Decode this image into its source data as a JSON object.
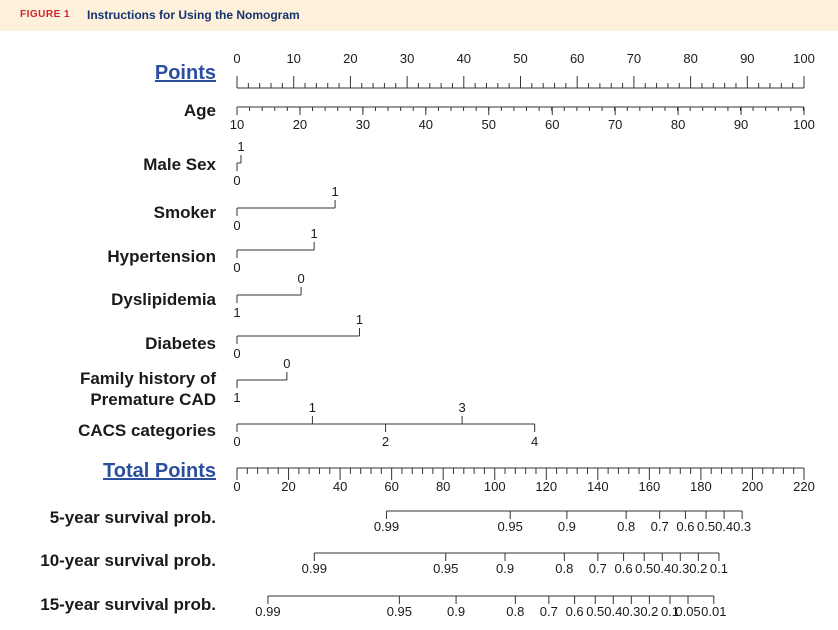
{
  "figure": {
    "label": "FIGURE 1",
    "title": "Instructions for Using the Nomogram"
  },
  "chart_data": {
    "type": "nomogram",
    "points_axis": {
      "label": "Points",
      "range": [
        0,
        100
      ],
      "major_ticks": [
        0,
        10,
        20,
        30,
        40,
        50,
        60,
        70,
        80,
        90,
        100
      ],
      "minor_step": 2
    },
    "predictors": [
      {
        "name": "Age",
        "labels": [
          {
            "text": "10",
            "points": 0,
            "side": "below"
          },
          {
            "text": "20",
            "points": 11.1,
            "side": "below"
          },
          {
            "text": "30",
            "points": 22.2,
            "side": "below"
          },
          {
            "text": "40",
            "points": 33.3,
            "side": "below"
          },
          {
            "text": "50",
            "points": 44.4,
            "side": "below"
          },
          {
            "text": "60",
            "points": 55.6,
            "side": "below"
          },
          {
            "text": "70",
            "points": 66.7,
            "side": "below"
          },
          {
            "text": "80",
            "points": 77.8,
            "side": "below"
          },
          {
            "text": "90",
            "points": 88.9,
            "side": "below"
          },
          {
            "text": "100",
            "points": 100,
            "side": "below"
          }
        ],
        "minor_step_points": 2.22
      },
      {
        "name": "Male Sex",
        "labels": [
          {
            "text": "0",
            "points": 0,
            "side": "below"
          },
          {
            "text": "1",
            "points": 0.7,
            "side": "above"
          }
        ]
      },
      {
        "name": "Smoker",
        "labels": [
          {
            "text": "0",
            "points": 0,
            "side": "below"
          },
          {
            "text": "1",
            "points": 17.3,
            "side": "above"
          }
        ]
      },
      {
        "name": "Hypertension",
        "labels": [
          {
            "text": "0",
            "points": 0,
            "side": "below"
          },
          {
            "text": "1",
            "points": 13.6,
            "side": "above"
          }
        ]
      },
      {
        "name": "Dyslipidemia",
        "labels": [
          {
            "text": "1",
            "points": 0,
            "side": "below"
          },
          {
            "text": "0",
            "points": 11.3,
            "side": "above"
          }
        ]
      },
      {
        "name": "Diabetes",
        "labels": [
          {
            "text": "0",
            "points": 0,
            "side": "below"
          },
          {
            "text": "1",
            "points": 21.6,
            "side": "above"
          }
        ]
      },
      {
        "name": "Family history of Premature CAD",
        "name_lines": [
          "Family history of",
          "Premature CAD"
        ],
        "labels": [
          {
            "text": "1",
            "points": 0,
            "side": "below"
          },
          {
            "text": "0",
            "points": 8.8,
            "side": "above"
          }
        ]
      },
      {
        "name": "CACS categories",
        "labels": [
          {
            "text": "0",
            "points": 0,
            "side": "below"
          },
          {
            "text": "1",
            "points": 13.3,
            "side": "above"
          },
          {
            "text": "2",
            "points": 26.2,
            "side": "below"
          },
          {
            "text": "3",
            "points": 39.7,
            "side": "above"
          },
          {
            "text": "4",
            "points": 52.5,
            "side": "below"
          }
        ]
      }
    ],
    "total_points_axis": {
      "label": "Total Points",
      "range": [
        0,
        220
      ],
      "major_ticks": [
        0,
        20,
        40,
        60,
        80,
        100,
        120,
        140,
        160,
        180,
        200,
        220
      ],
      "minor_step": 4
    },
    "outcomes": [
      {
        "name": "5-year survival prob.",
        "labels": [
          {
            "text": "0.99",
            "total_points": 58
          },
          {
            "text": "0.95",
            "total_points": 106
          },
          {
            "text": "0.9",
            "total_points": 128
          },
          {
            "text": "0.8",
            "total_points": 151
          },
          {
            "text": "0.7",
            "total_points": 164
          },
          {
            "text": "0.6",
            "total_points": 174
          },
          {
            "text": "0.5",
            "total_points": 182
          },
          {
            "text": "0.4",
            "total_points": 189
          },
          {
            "text": "0.3",
            "total_points": 196
          }
        ]
      },
      {
        "name": "10-year survival prob.",
        "labels": [
          {
            "text": "0.99",
            "total_points": 30
          },
          {
            "text": "0.95",
            "total_points": 81
          },
          {
            "text": "0.9",
            "total_points": 104
          },
          {
            "text": "0.8",
            "total_points": 127
          },
          {
            "text": "0.7",
            "total_points": 140
          },
          {
            "text": "0.6",
            "total_points": 150
          },
          {
            "text": "0.5",
            "total_points": 158
          },
          {
            "text": "0.4",
            "total_points": 165
          },
          {
            "text": "0.3",
            "total_points": 172
          },
          {
            "text": "0.2",
            "total_points": 179
          },
          {
            "text": "0.1",
            "total_points": 187
          }
        ]
      },
      {
        "name": "15-year survival prob.",
        "labels": [
          {
            "text": "0.99",
            "total_points": 12
          },
          {
            "text": "0.95",
            "total_points": 63
          },
          {
            "text": "0.9",
            "total_points": 85
          },
          {
            "text": "0.8",
            "total_points": 108
          },
          {
            "text": "0.7",
            "total_points": 121
          },
          {
            "text": "0.6",
            "total_points": 131
          },
          {
            "text": "0.5",
            "total_points": 139
          },
          {
            "text": "0.4",
            "total_points": 146
          },
          {
            "text": "0.3",
            "total_points": 153
          },
          {
            "text": "0.2",
            "total_points": 160
          },
          {
            "text": "0.1",
            "total_points": 168
          },
          {
            "text": "0.05",
            "total_points": 175
          },
          {
            "text": "0.01",
            "total_points": 185
          }
        ]
      }
    ],
    "colors": {
      "header_bg": "#fdf1dc",
      "figure_label": "#d0242a",
      "figure_title": "#17336e",
      "axis_title": "#2b4f9e",
      "text": "#1a1a1a",
      "line": "#333333"
    }
  }
}
